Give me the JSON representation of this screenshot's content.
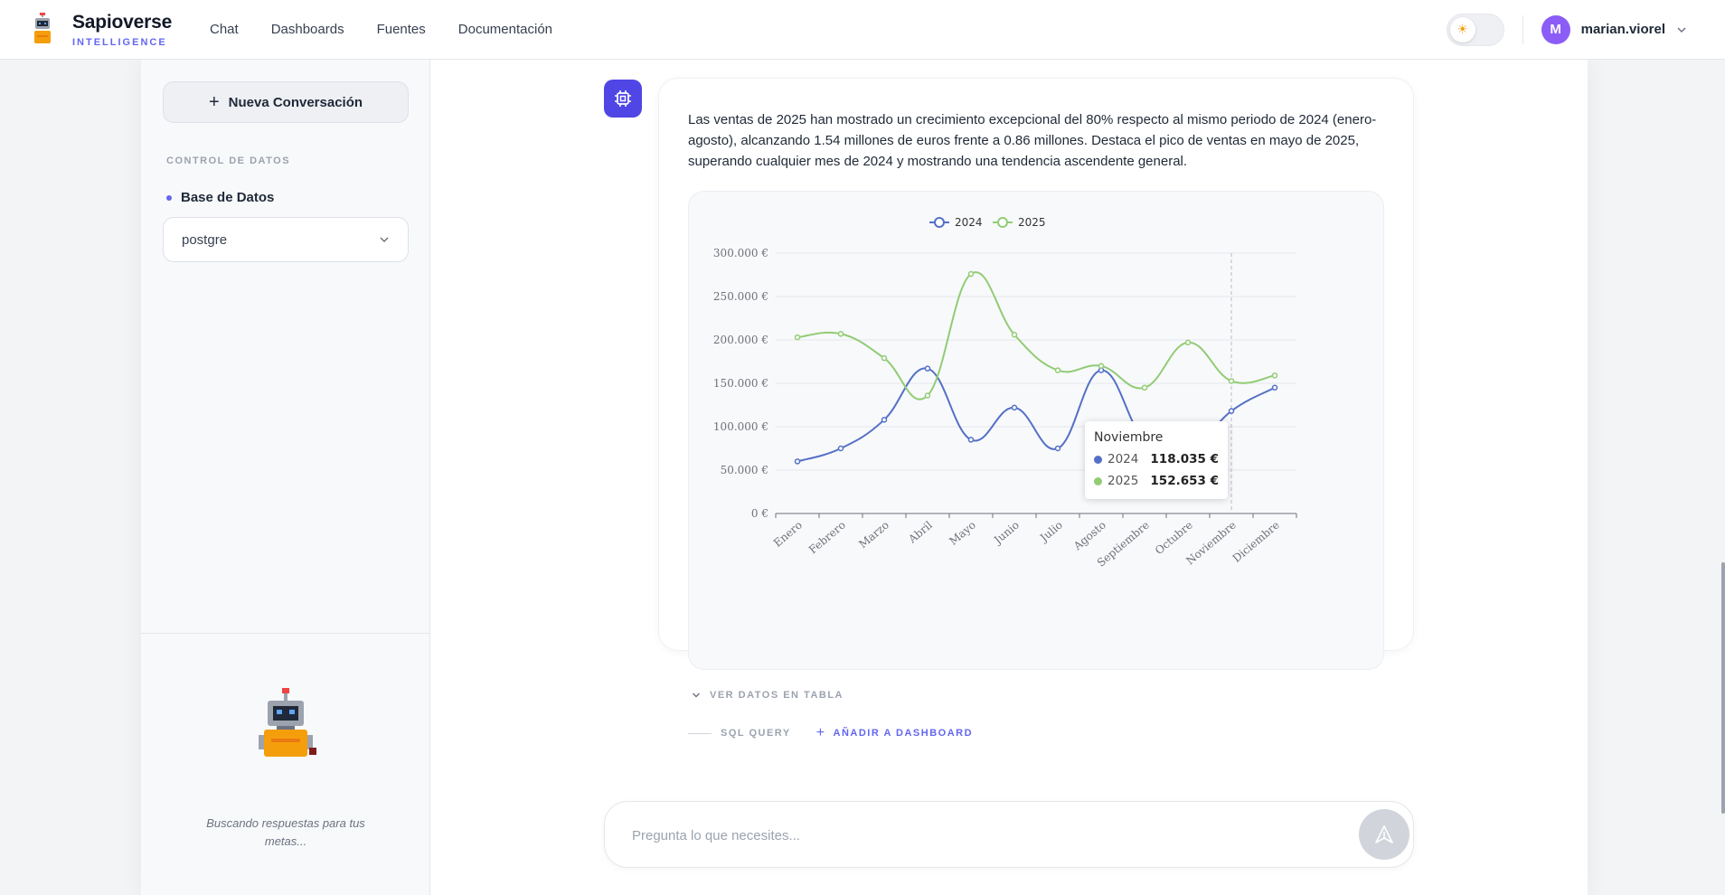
{
  "brand": {
    "name": "Sapioverse",
    "subtitle": "INTELLIGENCE"
  },
  "nav": [
    "Chat",
    "Dashboards",
    "Fuentes",
    "Documentación"
  ],
  "user": {
    "initial": "M",
    "name": "marian.viorel"
  },
  "sidebar": {
    "new_conversation": "Nueva Conversación",
    "section_label": "CONTROL DE DATOS",
    "db_label": "Base de Datos",
    "db_value": "postgre",
    "quote": "Buscando respuestas para tus metas..."
  },
  "message": {
    "text": "Las ventas de 2025 han mostrado un crecimiento excepcional del 80% respecto al mismo periodo de 2024 (enero-agosto), alcanzando 1.54 millones de euros frente a 0.86 millones. Destaca el pico de ventas en mayo de 2025, superando cualquier mes de 2024 y mostrando una tendencia ascendente general.",
    "ver_datos": "VER DATOS EN TABLA",
    "sql_query": "SQL QUERY",
    "add_dashboard": "AÑADIR A DASHBOARD"
  },
  "tooltip": {
    "title": "Noviembre",
    "rows": [
      {
        "label": "2024",
        "value": "118.035 €"
      },
      {
        "label": "2025",
        "value": "152.653 €"
      }
    ]
  },
  "input": {
    "placeholder": "Pregunta lo que necesites..."
  },
  "colors": {
    "accent": "#4f46e5",
    "series_2024": "#5470c6",
    "series_2025": "#91cc75"
  },
  "chart_data": {
    "type": "line",
    "categories": [
      "Enero",
      "Febrero",
      "Marzo",
      "Abril",
      "Mayo",
      "Junio",
      "Julio",
      "Agosto",
      "Septiembre",
      "Octubre",
      "Noviembre",
      "Diciembre"
    ],
    "series": [
      {
        "name": "2024",
        "values": [
          60000,
          75000,
          108000,
          167000,
          85000,
          122000,
          75000,
          165000,
          84000,
          71000,
          118035,
          145000
        ]
      },
      {
        "name": "2025",
        "values": [
          203000,
          207000,
          179000,
          136000,
          276000,
          206000,
          165000,
          170000,
          145000,
          197000,
          152653,
          159000
        ]
      }
    ],
    "yticks": [
      "0 €",
      "50.000 €",
      "100.000 €",
      "150.000 €",
      "200.000 €",
      "250.000 €",
      "300.000 €"
    ],
    "ylim": [
      0,
      300000
    ],
    "grid": true,
    "legend": "top-center",
    "smooth": true,
    "highlight_category": "Noviembre"
  }
}
